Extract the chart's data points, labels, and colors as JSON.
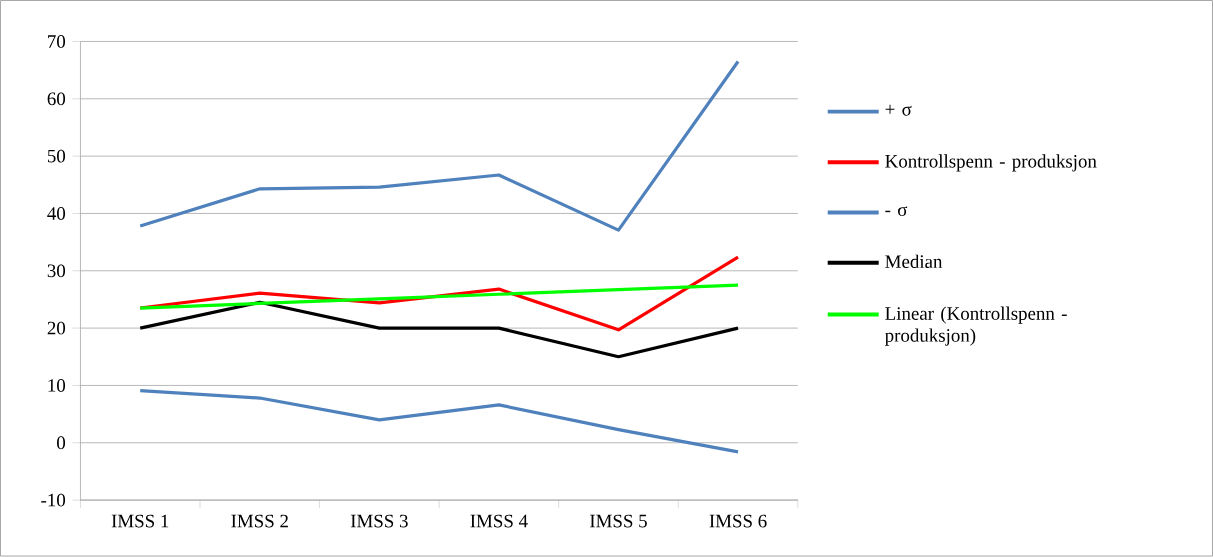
{
  "chart_data": {
    "type": "line",
    "categories": [
      "IMSS 1",
      "IMSS 2",
      "IMSS 3",
      "IMSS 4",
      "IMSS 5",
      "IMSS 6"
    ],
    "series": [
      {
        "name": "+ σ",
        "color": "#4f81bd",
        "values": [
          37.8,
          44.3,
          44.6,
          46.7,
          37.1,
          66.5
        ]
      },
      {
        "name": "Kontrollspenn - produksjon",
        "color": "#ff0000",
        "values": [
          23.5,
          26.1,
          24.4,
          26.8,
          19.7,
          32.4
        ]
      },
      {
        "name": "- σ",
        "color": "#4f81bd",
        "values": [
          9.1,
          7.8,
          4.0,
          6.6,
          2.3,
          -1.6
        ]
      },
      {
        "name": "Median",
        "color": "#000000",
        "values": [
          20,
          24.5,
          20,
          20,
          15,
          20
        ]
      },
      {
        "name": "Linear (Kontrollspenn - produksjon)",
        "color": "#00ff00",
        "values": [
          23.5,
          24.3,
          25.1,
          25.9,
          26.7,
          27.5
        ]
      }
    ],
    "ylim": [
      -10,
      70
    ],
    "yticks": [
      -10,
      0,
      10,
      20,
      30,
      40,
      50,
      60,
      70
    ],
    "grid": "y",
    "legend": "right",
    "marker": "none",
    "line_style": "solid"
  }
}
